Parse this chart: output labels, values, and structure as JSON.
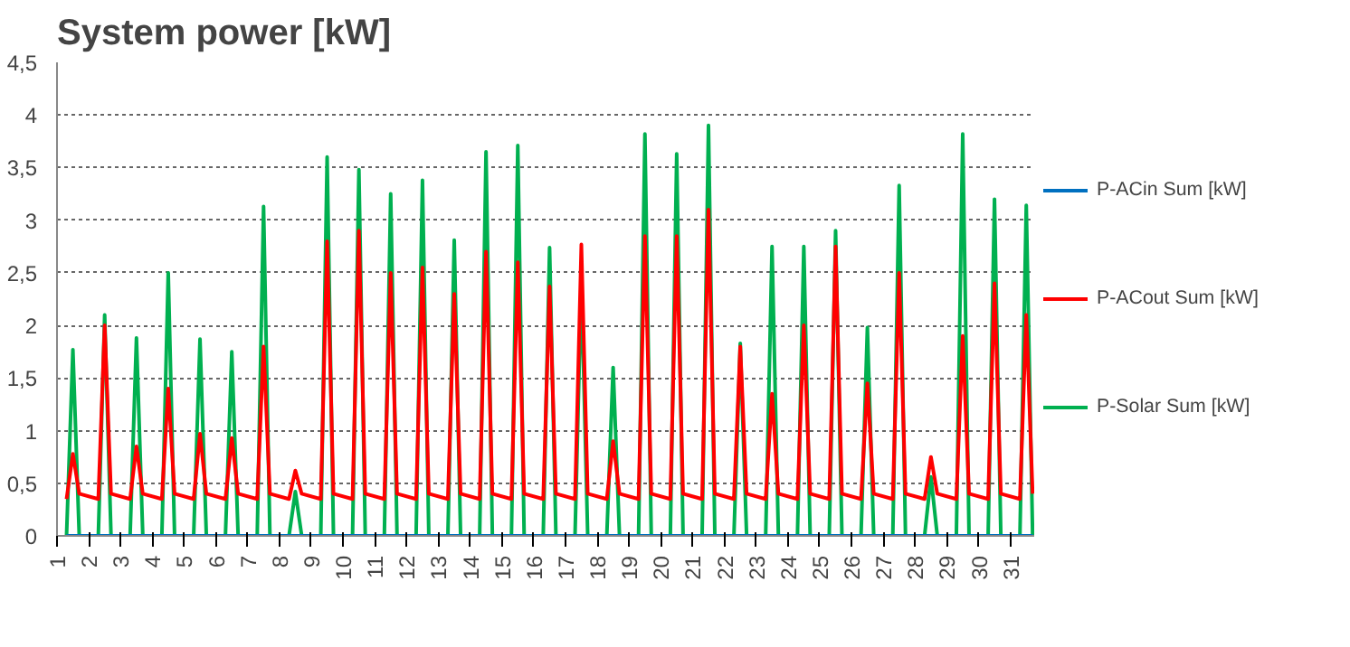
{
  "chart_data": {
    "type": "line",
    "title": "System power [kW]",
    "x": [
      1.3,
      1.5,
      1.7,
      2.3,
      2.5,
      2.7,
      3.3,
      3.5,
      3.7,
      4.3,
      4.5,
      4.7,
      5.3,
      5.5,
      5.7,
      6.3,
      6.5,
      6.7,
      7.3,
      7.5,
      7.7,
      8.3,
      8.5,
      8.7,
      9.3,
      9.5,
      9.7,
      10.3,
      10.5,
      10.7,
      11.3,
      11.5,
      11.7,
      12.3,
      12.5,
      12.7,
      13.3,
      13.5,
      13.7,
      14.3,
      14.5,
      14.7,
      15.3,
      15.5,
      15.7,
      16.3,
      16.5,
      16.7,
      17.3,
      17.5,
      17.7,
      18.3,
      18.5,
      18.7,
      19.3,
      19.5,
      19.7,
      20.3,
      20.5,
      20.7,
      21.3,
      21.5,
      21.7,
      22.3,
      22.5,
      22.7,
      23.3,
      23.5,
      23.7,
      24.3,
      24.5,
      24.7,
      25.3,
      25.5,
      25.7,
      26.3,
      26.5,
      26.7,
      27.3,
      27.5,
      27.7,
      28.3,
      28.5,
      28.7,
      29.3,
      29.5,
      29.7,
      30.3,
      30.5,
      30.7,
      31.3,
      31.5,
      31.7
    ],
    "series": [
      {
        "name": "P-ACin Sum [kW]",
        "color": "#0070c0",
        "values": [
          0,
          0,
          0,
          0,
          0,
          0,
          0,
          0,
          0,
          0,
          0,
          0,
          0,
          0,
          0,
          0,
          0,
          0,
          0,
          0,
          0,
          0,
          0,
          0,
          0,
          0,
          0,
          0,
          0,
          0,
          0,
          0,
          0,
          0,
          0,
          0,
          0,
          0,
          0,
          0,
          0,
          0,
          0,
          0,
          0,
          0,
          0,
          0,
          0,
          0,
          0,
          0,
          0,
          0,
          0,
          0,
          0,
          0,
          0,
          0,
          0,
          0,
          0,
          0,
          0,
          0,
          0,
          0,
          0,
          0,
          0,
          0,
          0,
          0,
          0,
          0,
          0,
          0,
          0,
          0,
          0,
          0,
          0,
          0,
          0,
          0,
          0,
          0,
          0,
          0,
          0,
          0,
          0
        ]
      },
      {
        "name": "P-ACout Sum [kW]",
        "color": "#ff0000",
        "values": [
          0.35,
          0.78,
          0.4,
          0.35,
          2.0,
          0.4,
          0.35,
          0.85,
          0.4,
          0.35,
          1.4,
          0.4,
          0.35,
          0.97,
          0.4,
          0.35,
          0.93,
          0.4,
          0.35,
          1.8,
          0.4,
          0.35,
          0.62,
          0.4,
          0.35,
          2.8,
          0.4,
          0.35,
          2.9,
          0.4,
          0.35,
          2.5,
          0.4,
          0.35,
          2.55,
          0.4,
          0.35,
          2.3,
          0.4,
          0.35,
          2.7,
          0.4,
          0.35,
          2.6,
          0.4,
          0.35,
          2.37,
          0.4,
          0.35,
          2.77,
          0.4,
          0.35,
          0.9,
          0.4,
          0.35,
          2.85,
          0.4,
          0.35,
          2.85,
          0.4,
          0.35,
          3.1,
          0.4,
          0.35,
          1.8,
          0.4,
          0.35,
          1.35,
          0.4,
          0.35,
          2.0,
          0.4,
          0.35,
          2.75,
          0.4,
          0.35,
          1.45,
          0.4,
          0.35,
          2.5,
          0.4,
          0.35,
          0.75,
          0.4,
          0.35,
          1.9,
          0.4,
          0.35,
          2.4,
          0.4,
          0.35,
          2.1,
          0.4
        ]
      },
      {
        "name": "P-Solar Sum [kW]",
        "color": "#00b050",
        "values": [
          0,
          1.77,
          0,
          0,
          2.1,
          0,
          0,
          1.88,
          0,
          0,
          2.5,
          0,
          0,
          1.87,
          0,
          0,
          1.75,
          0,
          0,
          3.13,
          0,
          0,
          0.42,
          0,
          0,
          3.6,
          0,
          0,
          3.48,
          0,
          0,
          3.25,
          0,
          0,
          3.38,
          0,
          0,
          2.81,
          0,
          0,
          3.65,
          0,
          0,
          3.71,
          0,
          0,
          2.74,
          0,
          0,
          2.43,
          0,
          0,
          1.6,
          0,
          0,
          3.82,
          0,
          0,
          3.63,
          0,
          0,
          3.9,
          0,
          0,
          1.83,
          0,
          0,
          2.75,
          0,
          0,
          2.75,
          0,
          0,
          2.9,
          0,
          0,
          1.98,
          0,
          0,
          3.33,
          0,
          0,
          0.56,
          0,
          0,
          3.82,
          0,
          0,
          3.2,
          0,
          0,
          3.14,
          0
        ]
      }
    ],
    "xlim": [
      1,
      31.75
    ],
    "xticks": [
      1,
      2,
      3,
      4,
      5,
      6,
      7,
      8,
      9,
      10,
      11,
      12,
      13,
      14,
      15,
      16,
      17,
      18,
      19,
      20,
      21,
      22,
      23,
      24,
      25,
      26,
      27,
      28,
      29,
      30,
      31
    ],
    "ylim": [
      0,
      4.5
    ],
    "yticks": [
      0,
      {
        "value": 0.5,
        "label": "0,5"
      },
      1,
      {
        "value": 1.5,
        "label": "1,5"
      },
      2,
      {
        "value": 2.5,
        "label": "2,5"
      },
      3,
      {
        "value": 3.5,
        "label": "3,5"
      },
      4,
      {
        "value": 4.5,
        "label": "4,5"
      }
    ],
    "grid": "y",
    "legend": "right",
    "marker": "none",
    "line_style": "solid"
  }
}
